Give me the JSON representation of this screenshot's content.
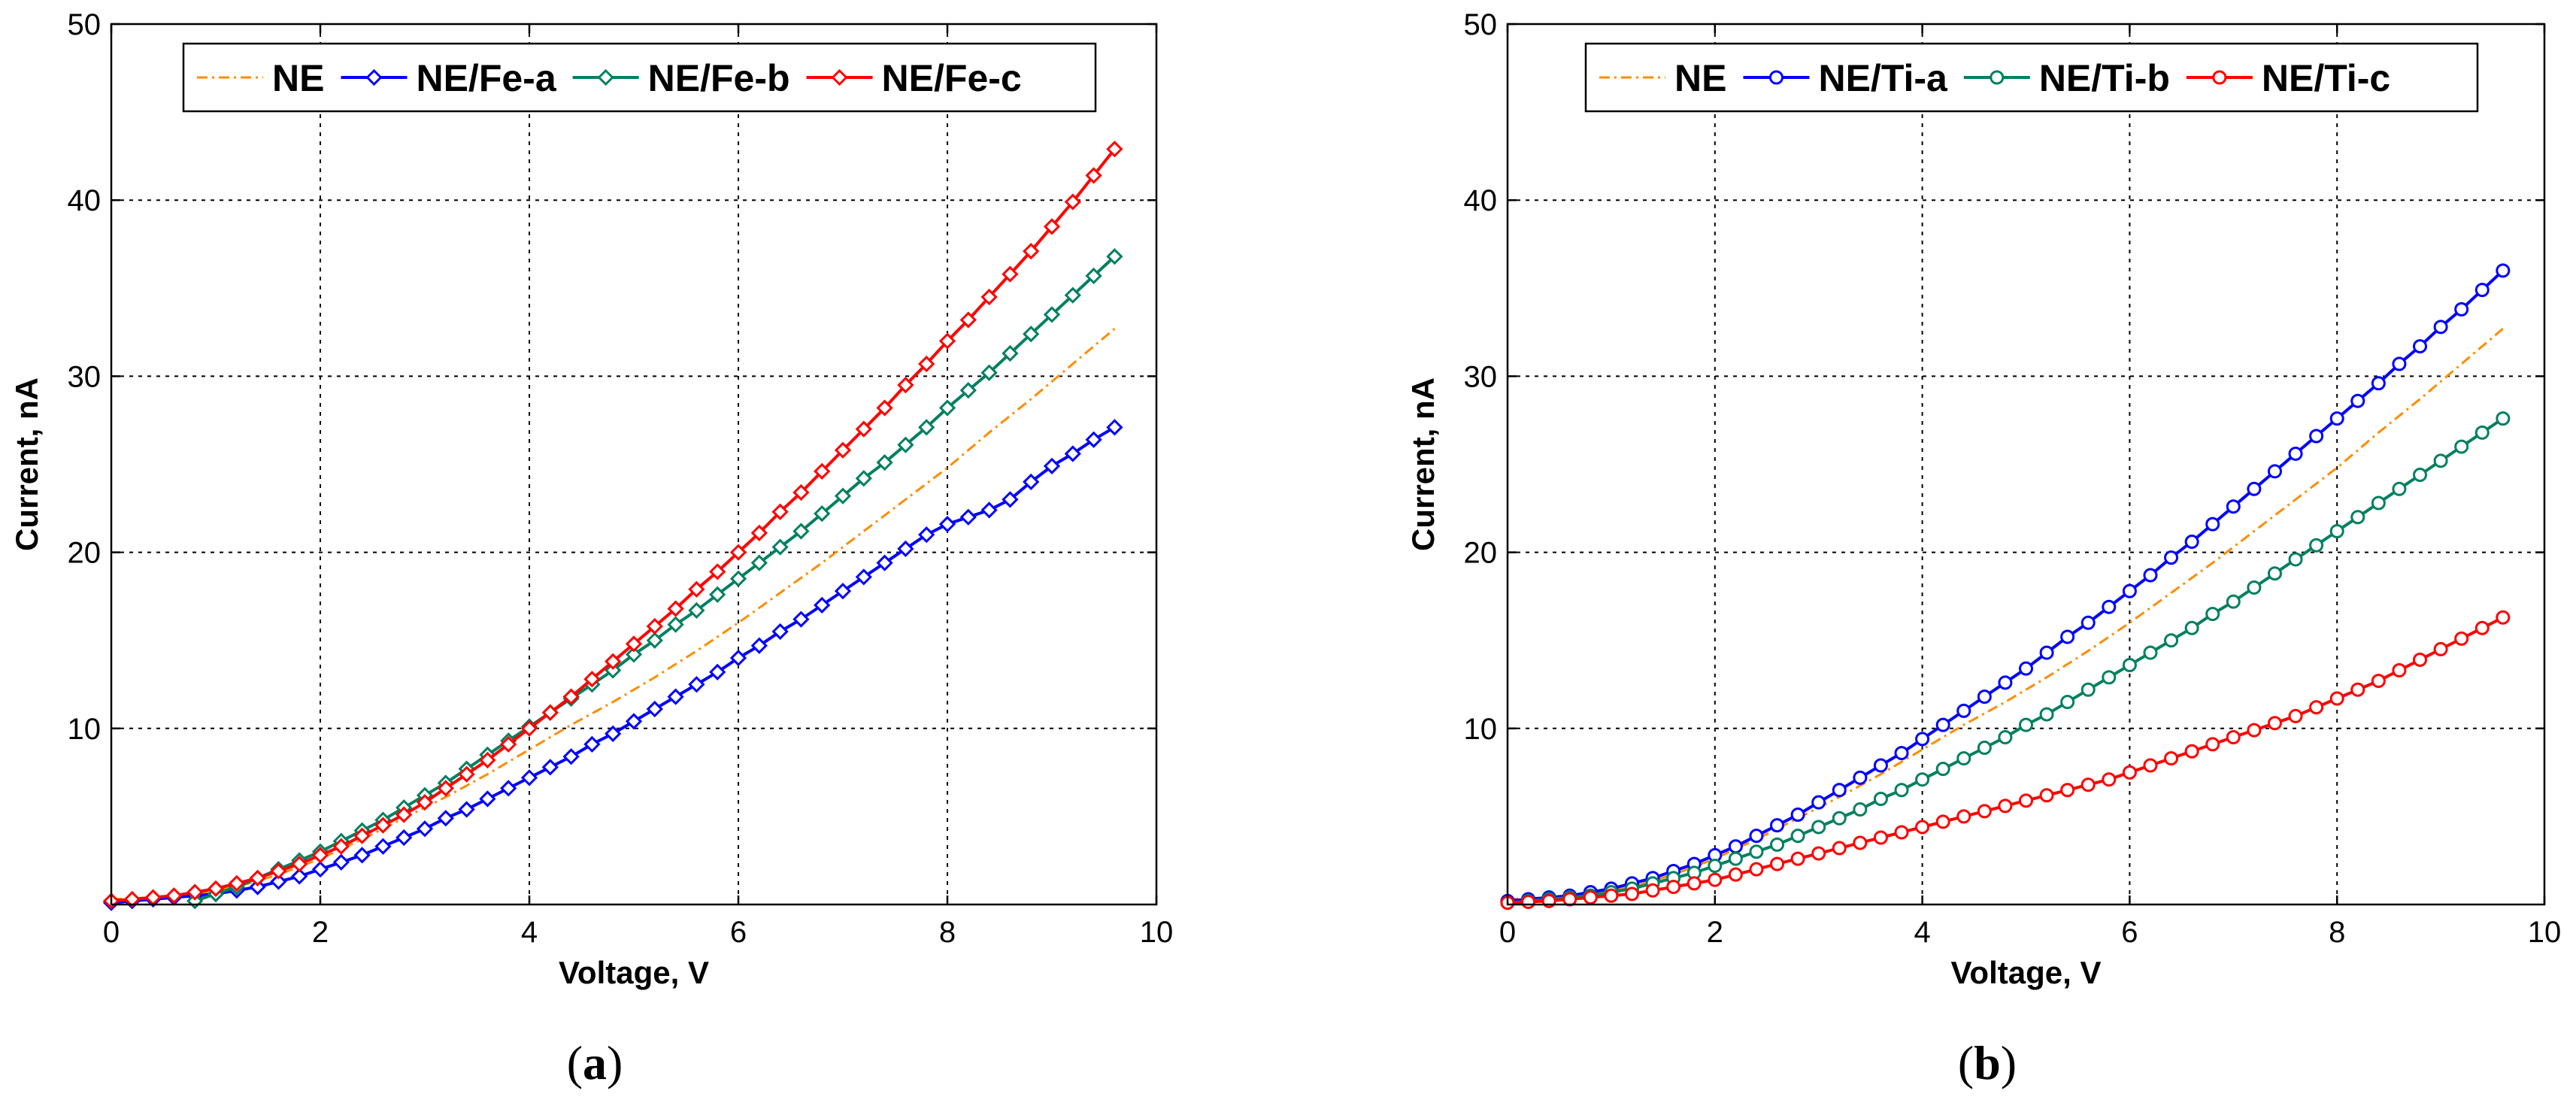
{
  "figure": {
    "panel_labels": [
      "(a)",
      "(b)"
    ]
  },
  "chart_data": [
    {
      "type": "line",
      "panel": "(a)",
      "xlabel": "Voltage, V",
      "ylabel": "Current, nA",
      "xlim": [
        0,
        10
      ],
      "ylim": [
        0,
        50
      ],
      "xticks": [
        0,
        2,
        4,
        6,
        8,
        10
      ],
      "yticks": [
        10,
        20,
        30,
        40,
        50
      ],
      "grid": true,
      "legend_position": "top",
      "series": [
        {
          "name": "NE",
          "color": "#ff8c00",
          "style": "dashdot",
          "marker": "none",
          "x": [
            0,
            0.4,
            0.8,
            1.2,
            1.6,
            2.0,
            2.4,
            2.8,
            3.2,
            3.6,
            4.0,
            4.4,
            4.8,
            5.2,
            5.6,
            6.0,
            6.4,
            6.8,
            7.2,
            7.6,
            8.0,
            8.4,
            8.8,
            9.2,
            9.6
          ],
          "y": [
            0.3,
            0.4,
            0.6,
            1.0,
            1.7,
            2.6,
            3.7,
            4.9,
            6.1,
            7.4,
            8.8,
            10.2,
            11.5,
            12.9,
            14.4,
            16.0,
            17.7,
            19.4,
            21.2,
            23.0,
            24.8,
            26.8,
            28.7,
            30.7,
            32.7
          ]
        },
        {
          "name": "NE/Fe-a",
          "color": "#0000ff",
          "style": "solid",
          "marker": "diamond",
          "x": [
            0,
            0.2,
            0.4,
            0.6,
            0.8,
            1.0,
            1.2,
            1.4,
            1.6,
            1.8,
            2.0,
            2.2,
            2.4,
            2.6,
            2.8,
            3.0,
            3.2,
            3.4,
            3.6,
            3.8,
            4.0,
            4.2,
            4.4,
            4.6,
            4.8,
            5.0,
            5.2,
            5.4,
            5.6,
            5.8,
            6.0,
            6.2,
            6.4,
            6.6,
            6.8,
            7.0,
            7.2,
            7.4,
            7.6,
            7.8,
            8.0,
            8.2,
            8.4,
            8.6,
            8.8,
            9.0,
            9.2,
            9.4,
            9.6
          ],
          "y": [
            0.1,
            0.2,
            0.3,
            0.4,
            0.5,
            0.6,
            0.8,
            1.0,
            1.3,
            1.6,
            2.0,
            2.4,
            2.8,
            3.3,
            3.8,
            4.3,
            4.9,
            5.4,
            6.0,
            6.6,
            7.2,
            7.8,
            8.4,
            9.1,
            9.7,
            10.4,
            11.1,
            11.8,
            12.5,
            13.2,
            14.0,
            14.7,
            15.5,
            16.2,
            17.0,
            17.8,
            18.6,
            19.4,
            20.2,
            21.0,
            21.6,
            22.0,
            22.4,
            23.0,
            24.0,
            24.9,
            25.6,
            26.4,
            27.1
          ]
        },
        {
          "name": "NE/Fe-b",
          "color": "#008060",
          "style": "solid",
          "marker": "diamond",
          "x": [
            0.8,
            1.0,
            1.2,
            1.4,
            1.6,
            1.8,
            2.0,
            2.2,
            2.4,
            2.6,
            2.8,
            3.0,
            3.2,
            3.4,
            3.6,
            3.8,
            4.0,
            4.2,
            4.4,
            4.6,
            4.8,
            5.0,
            5.2,
            5.4,
            5.6,
            5.8,
            6.0,
            6.2,
            6.4,
            6.6,
            6.8,
            7.0,
            7.2,
            7.4,
            7.6,
            7.8,
            8.0,
            8.2,
            8.4,
            8.6,
            8.8,
            9.0,
            9.2,
            9.4,
            9.6
          ],
          "y": [
            0.2,
            0.6,
            1.0,
            1.5,
            2.0,
            2.5,
            3.0,
            3.6,
            4.2,
            4.8,
            5.5,
            6.2,
            6.9,
            7.7,
            8.5,
            9.3,
            10.1,
            10.9,
            11.7,
            12.5,
            13.3,
            14.2,
            15.0,
            15.9,
            16.7,
            17.6,
            18.5,
            19.4,
            20.3,
            21.2,
            22.2,
            23.2,
            24.2,
            25.1,
            26.1,
            27.1,
            28.2,
            29.2,
            30.2,
            31.3,
            32.4,
            33.5,
            34.6,
            35.7,
            36.8
          ]
        },
        {
          "name": "NE/Fe-c",
          "color": "#ff0000",
          "style": "solid",
          "marker": "diamond",
          "x": [
            0,
            0.2,
            0.4,
            0.6,
            0.8,
            1.0,
            1.2,
            1.4,
            1.6,
            1.8,
            2.0,
            2.2,
            2.4,
            2.6,
            2.8,
            3.0,
            3.2,
            3.4,
            3.6,
            3.8,
            4.0,
            4.2,
            4.4,
            4.6,
            4.8,
            5.0,
            5.2,
            5.4,
            5.6,
            5.8,
            6.0,
            6.2,
            6.4,
            6.6,
            6.8,
            7.0,
            7.2,
            7.4,
            7.6,
            7.8,
            8.0,
            8.2,
            8.4,
            8.6,
            8.8,
            9.0,
            9.2,
            9.4,
            9.6
          ],
          "y": [
            0.2,
            0.3,
            0.4,
            0.5,
            0.7,
            0.9,
            1.2,
            1.5,
            1.9,
            2.3,
            2.8,
            3.3,
            3.9,
            4.5,
            5.1,
            5.8,
            6.6,
            7.4,
            8.2,
            9.1,
            10.0,
            10.9,
            11.8,
            12.8,
            13.8,
            14.8,
            15.8,
            16.8,
            17.9,
            18.9,
            20.0,
            21.1,
            22.3,
            23.4,
            24.6,
            25.8,
            27.0,
            28.2,
            29.5,
            30.7,
            32.0,
            33.2,
            34.5,
            35.8,
            37.1,
            38.5,
            39.9,
            41.4,
            42.9
          ]
        }
      ]
    },
    {
      "type": "line",
      "panel": "(b)",
      "xlabel": "Voltage, V",
      "ylabel": "Current, nA",
      "xlim": [
        0,
        10
      ],
      "ylim": [
        0,
        50
      ],
      "xticks": [
        0,
        2,
        4,
        6,
        8,
        10
      ],
      "yticks": [
        10,
        20,
        30,
        40,
        50
      ],
      "grid": true,
      "legend_position": "top",
      "series": [
        {
          "name": "NE",
          "color": "#ff8c00",
          "style": "dashdot",
          "marker": "none",
          "x": [
            0,
            0.4,
            0.8,
            1.2,
            1.6,
            2.0,
            2.4,
            2.8,
            3.2,
            3.6,
            4.0,
            4.4,
            4.8,
            5.2,
            5.6,
            6.0,
            6.4,
            6.8,
            7.2,
            7.6,
            8.0,
            8.4,
            8.8,
            9.2,
            9.6
          ],
          "y": [
            0.3,
            0.4,
            0.6,
            1.0,
            1.7,
            2.6,
            3.7,
            4.9,
            6.1,
            7.4,
            8.8,
            10.2,
            11.5,
            12.9,
            14.4,
            16.0,
            17.7,
            19.4,
            21.2,
            23.0,
            24.8,
            26.8,
            28.7,
            30.7,
            32.7
          ]
        },
        {
          "name": "NE/Ti-a",
          "color": "#0000ff",
          "style": "solid",
          "marker": "circle",
          "x": [
            0,
            0.2,
            0.4,
            0.6,
            0.8,
            1.0,
            1.2,
            1.4,
            1.6,
            1.8,
            2.0,
            2.2,
            2.4,
            2.6,
            2.8,
            3.0,
            3.2,
            3.4,
            3.6,
            3.8,
            4.0,
            4.2,
            4.4,
            4.6,
            4.8,
            5.0,
            5.2,
            5.4,
            5.6,
            5.8,
            6.0,
            6.2,
            6.4,
            6.6,
            6.8,
            7.0,
            7.2,
            7.4,
            7.6,
            7.8,
            8.0,
            8.2,
            8.4,
            8.6,
            8.8,
            9.0,
            9.2,
            9.4,
            9.6
          ],
          "y": [
            0.2,
            0.3,
            0.4,
            0.5,
            0.7,
            0.9,
            1.2,
            1.5,
            1.9,
            2.3,
            2.8,
            3.3,
            3.9,
            4.5,
            5.1,
            5.8,
            6.5,
            7.2,
            7.9,
            8.6,
            9.4,
            10.2,
            11.0,
            11.8,
            12.6,
            13.4,
            14.3,
            15.2,
            16.0,
            16.9,
            17.8,
            18.7,
            19.7,
            20.6,
            21.6,
            22.6,
            23.6,
            24.6,
            25.6,
            26.6,
            27.6,
            28.6,
            29.6,
            30.7,
            31.7,
            32.8,
            33.8,
            34.9,
            36.0
          ]
        },
        {
          "name": "NE/Ti-b",
          "color": "#008060",
          "style": "solid",
          "marker": "circle",
          "x": [
            0,
            0.2,
            0.4,
            0.6,
            0.8,
            1.0,
            1.2,
            1.4,
            1.6,
            1.8,
            2.0,
            2.2,
            2.4,
            2.6,
            2.8,
            3.0,
            3.2,
            3.4,
            3.6,
            3.8,
            4.0,
            4.2,
            4.4,
            4.6,
            4.8,
            5.0,
            5.2,
            5.4,
            5.6,
            5.8,
            6.0,
            6.2,
            6.4,
            6.6,
            6.8,
            7.0,
            7.2,
            7.4,
            7.6,
            7.8,
            8.0,
            8.2,
            8.4,
            8.6,
            8.8,
            9.0,
            9.2,
            9.4,
            9.6
          ],
          "y": [
            0.1,
            0.2,
            0.3,
            0.4,
            0.5,
            0.7,
            0.9,
            1.2,
            1.5,
            1.8,
            2.2,
            2.6,
            3.0,
            3.4,
            3.9,
            4.4,
            4.9,
            5.4,
            6.0,
            6.5,
            7.1,
            7.7,
            8.3,
            8.9,
            9.5,
            10.2,
            10.8,
            11.5,
            12.2,
            12.9,
            13.6,
            14.3,
            15.0,
            15.7,
            16.5,
            17.2,
            18.0,
            18.8,
            19.6,
            20.4,
            21.2,
            22.0,
            22.8,
            23.6,
            24.4,
            25.2,
            26.0,
            26.8,
            27.6
          ]
        },
        {
          "name": "NE/Ti-c",
          "color": "#ff0000",
          "style": "solid",
          "marker": "circle",
          "x": [
            0,
            0.2,
            0.4,
            0.6,
            0.8,
            1.0,
            1.2,
            1.4,
            1.6,
            1.8,
            2.0,
            2.2,
            2.4,
            2.6,
            2.8,
            3.0,
            3.2,
            3.4,
            3.6,
            3.8,
            4.0,
            4.2,
            4.4,
            4.6,
            4.8,
            5.0,
            5.2,
            5.4,
            5.6,
            5.8,
            6.0,
            6.2,
            6.4,
            6.6,
            6.8,
            7.0,
            7.2,
            7.4,
            7.6,
            7.8,
            8.0,
            8.2,
            8.4,
            8.6,
            8.8,
            9.0,
            9.2,
            9.4,
            9.6
          ],
          "y": [
            0.1,
            0.15,
            0.2,
            0.3,
            0.4,
            0.5,
            0.6,
            0.8,
            1.0,
            1.2,
            1.4,
            1.7,
            2.0,
            2.3,
            2.6,
            2.9,
            3.2,
            3.5,
            3.8,
            4.1,
            4.4,
            4.7,
            5.0,
            5.3,
            5.6,
            5.9,
            6.2,
            6.5,
            6.8,
            7.1,
            7.5,
            7.9,
            8.3,
            8.7,
            9.1,
            9.5,
            9.9,
            10.3,
            10.7,
            11.2,
            11.7,
            12.2,
            12.7,
            13.3,
            13.9,
            14.5,
            15.1,
            15.7,
            16.3
          ]
        }
      ]
    }
  ]
}
